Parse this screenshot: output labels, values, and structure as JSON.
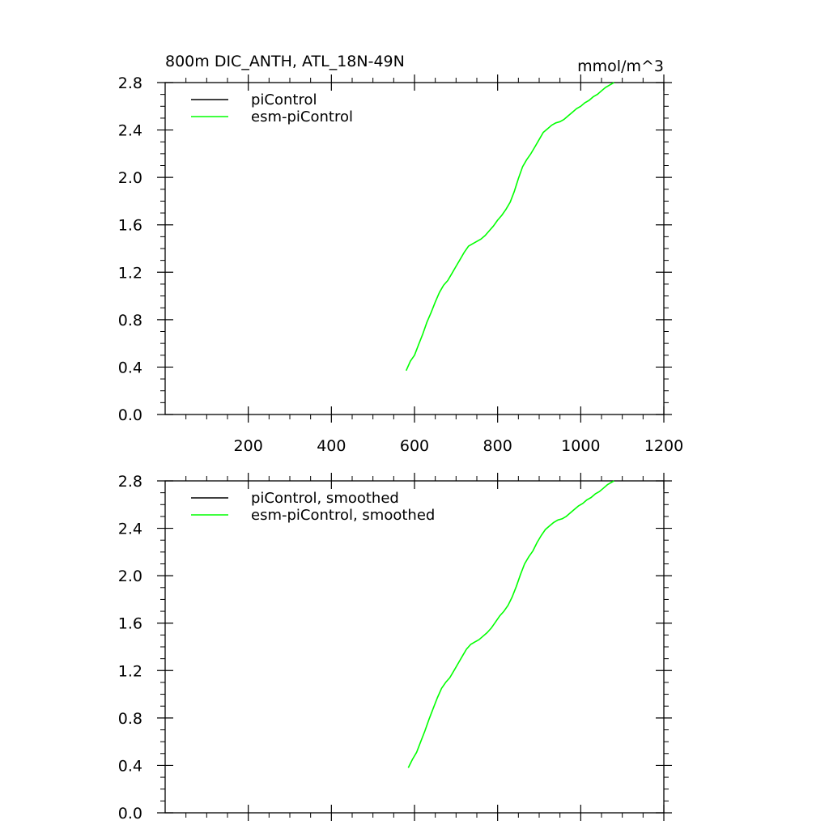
{
  "title_left": "800m DIC_ANTH, ATL_18N-49N",
  "title_right": "mmol/m^3",
  "colors": {
    "piControl": "#000000",
    "esm-piControl": "#00ff00",
    "axis": "#000000"
  },
  "chart_data": [
    {
      "type": "line",
      "xlim": [
        0,
        1200
      ],
      "ylim": [
        0.0,
        2.8
      ],
      "x_ticks": [
        200,
        400,
        600,
        800,
        1000,
        1200
      ],
      "x_tick_labels": [
        "200",
        "400",
        "600",
        "800",
        "1000",
        "1200"
      ],
      "y_ticks": [
        0.0,
        0.4,
        0.8,
        1.2,
        1.6,
        2.0,
        2.4,
        2.8
      ],
      "y_tick_labels": [
        "0.0",
        "0.4",
        "0.8",
        "1.2",
        "1.6",
        "2.0",
        "2.4",
        "2.8"
      ],
      "legend": [
        "piControl",
        "esm-piControl"
      ],
      "legend_position": "top-left",
      "series": [
        {
          "name": "piControl",
          "color": "#000000",
          "x": [],
          "y": []
        },
        {
          "name": "esm-piControl",
          "color": "#00ff00",
          "x": [
            580,
            590,
            600,
            610,
            620,
            630,
            640,
            650,
            660,
            670,
            680,
            690,
            700,
            710,
            720,
            730,
            740,
            750,
            760,
            770,
            780,
            790,
            800,
            810,
            820,
            830,
            840,
            850,
            860,
            870,
            880,
            890,
            900,
            910,
            920,
            930,
            940,
            950,
            960,
            970,
            980,
            990,
            1000,
            1010,
            1020,
            1030,
            1040,
            1050,
            1060,
            1070,
            1080
          ],
          "y": [
            0.37,
            0.45,
            0.5,
            0.59,
            0.68,
            0.78,
            0.86,
            0.95,
            1.03,
            1.09,
            1.13,
            1.19,
            1.25,
            1.31,
            1.37,
            1.42,
            1.44,
            1.46,
            1.48,
            1.51,
            1.55,
            1.59,
            1.64,
            1.68,
            1.73,
            1.79,
            1.88,
            1.99,
            2.09,
            2.15,
            2.2,
            2.26,
            2.32,
            2.38,
            2.41,
            2.44,
            2.46,
            2.47,
            2.49,
            2.52,
            2.55,
            2.58,
            2.6,
            2.63,
            2.65,
            2.68,
            2.7,
            2.73,
            2.76,
            2.78,
            2.8
          ]
        }
      ]
    },
    {
      "type": "line",
      "xlim": [
        0,
        1200
      ],
      "ylim": [
        0.0,
        2.8
      ],
      "x_ticks": [
        200,
        400,
        600,
        800,
        1000,
        1200
      ],
      "x_tick_labels": [],
      "y_ticks": [
        0.0,
        0.4,
        0.8,
        1.2,
        1.6,
        2.0,
        2.4,
        2.8
      ],
      "y_tick_labels": [
        "0.0",
        "0.4",
        "0.8",
        "1.2",
        "1.6",
        "2.0",
        "2.4",
        "2.8"
      ],
      "legend": [
        "piControl, smoothed",
        "esm-piControl, smoothed"
      ],
      "legend_position": "top-left",
      "series": [
        {
          "name": "piControl, smoothed",
          "color": "#000000",
          "x": [],
          "y": []
        },
        {
          "name": "esm-piControl, smoothed",
          "color": "#00ff00",
          "x": [
            585,
            595,
            605,
            615,
            625,
            635,
            645,
            655,
            665,
            675,
            685,
            695,
            705,
            715,
            725,
            735,
            745,
            755,
            765,
            775,
            785,
            795,
            805,
            815,
            825,
            835,
            845,
            855,
            865,
            875,
            885,
            895,
            905,
            915,
            925,
            935,
            945,
            955,
            965,
            975,
            985,
            995,
            1005,
            1015,
            1025,
            1035,
            1045,
            1055,
            1065,
            1075,
            1080
          ],
          "y": [
            0.38,
            0.45,
            0.51,
            0.6,
            0.69,
            0.79,
            0.88,
            0.97,
            1.05,
            1.1,
            1.14,
            1.2,
            1.26,
            1.32,
            1.38,
            1.42,
            1.44,
            1.46,
            1.49,
            1.52,
            1.56,
            1.61,
            1.66,
            1.7,
            1.75,
            1.82,
            1.91,
            2.01,
            2.1,
            2.16,
            2.21,
            2.28,
            2.34,
            2.39,
            2.42,
            2.45,
            2.47,
            2.48,
            2.5,
            2.53,
            2.56,
            2.59,
            2.61,
            2.64,
            2.66,
            2.69,
            2.71,
            2.74,
            2.77,
            2.79,
            2.8
          ]
        }
      ]
    }
  ]
}
